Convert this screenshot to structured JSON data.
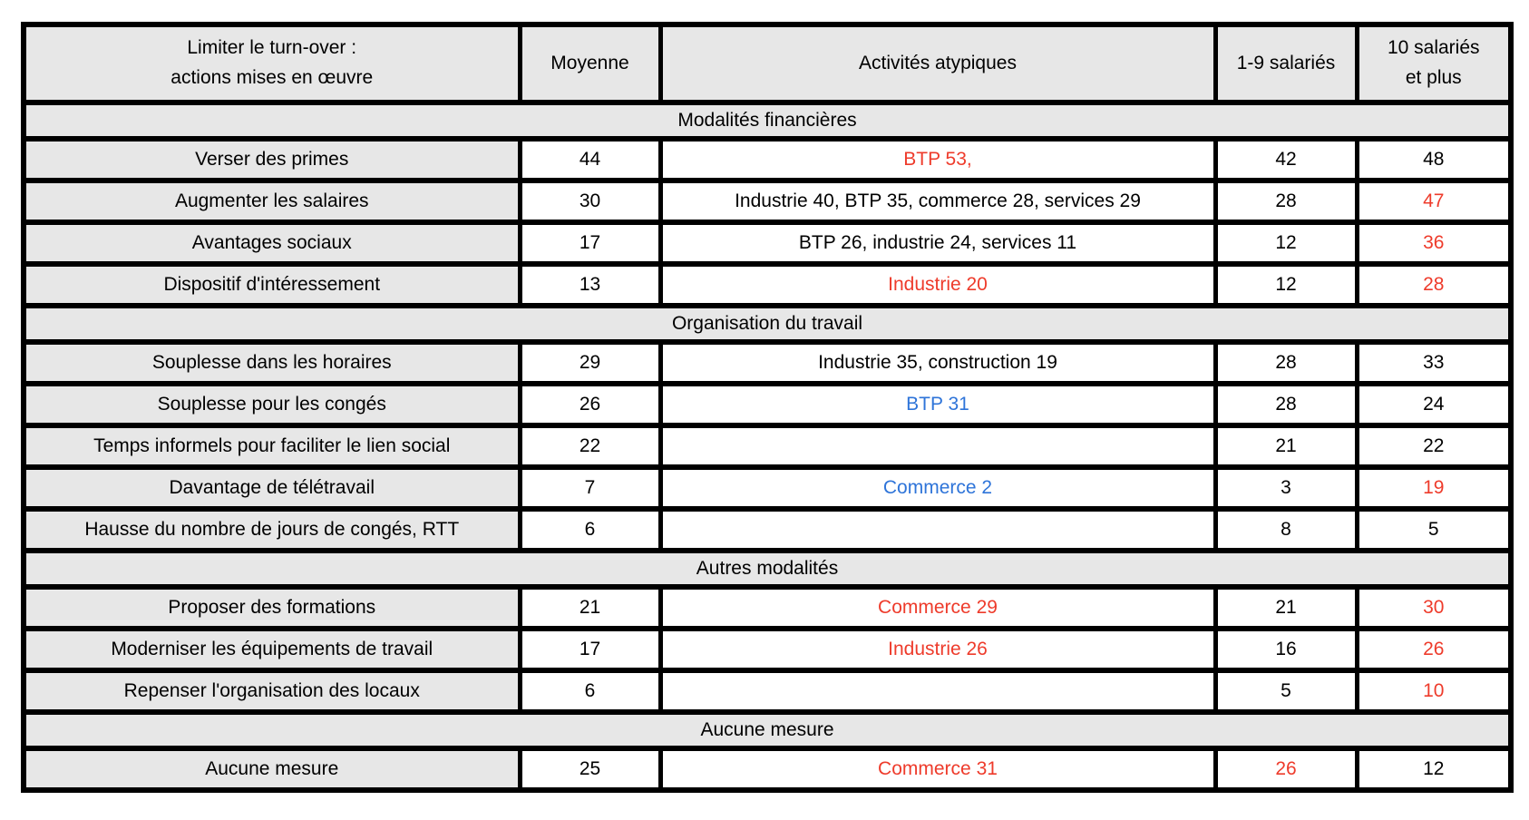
{
  "colors": {
    "red": "#ee3b2b",
    "blue": "#2e74d9",
    "text": "#000000",
    "band_bg": "#e7e7e7",
    "border": "#000000"
  },
  "chart_data": {
    "type": "table",
    "title": "Limiter le turn-over : actions mises en œuvre",
    "legend_note": "red and blue values highlight atypical results",
    "header": [
      {
        "text": "Limiter le turn-over :\nactions mises en œuvre"
      },
      {
        "text": "Moyenne"
      },
      {
        "text": "Activités atypiques"
      },
      {
        "text": "1-9 salariés"
      },
      {
        "text": "10 salariés\net plus"
      }
    ],
    "sections": [
      {
        "title": "Modalités financières",
        "rows": [
          {
            "cells": [
              {
                "text": "Verser des primes"
              },
              {
                "text": "44"
              },
              {
                "text": "BTP 53,",
                "color": "red"
              },
              {
                "text": "42"
              },
              {
                "text": "48"
              }
            ]
          },
          {
            "cells": [
              {
                "text": "Augmenter les salaires"
              },
              {
                "text": "30"
              },
              {
                "text": "Industrie 40, BTP 35, commerce 28, services 29"
              },
              {
                "text": "28"
              },
              {
                "text": "47",
                "color": "red"
              }
            ]
          },
          {
            "cells": [
              {
                "text": "Avantages sociaux"
              },
              {
                "text": "17"
              },
              {
                "text": "BTP 26, industrie 24, services 11"
              },
              {
                "text": "12"
              },
              {
                "text": "36",
                "color": "red"
              }
            ]
          },
          {
            "cells": [
              {
                "text": "Dispositif d'intéressement"
              },
              {
                "text": "13"
              },
              {
                "text": "Industrie 20",
                "color": "red"
              },
              {
                "text": "12"
              },
              {
                "text": "28",
                "color": "red"
              }
            ]
          }
        ]
      },
      {
        "title": "Organisation du travail",
        "rows": [
          {
            "cells": [
              {
                "text": "Souplesse dans les horaires"
              },
              {
                "text": "29"
              },
              {
                "text": "Industrie 35, construction 19"
              },
              {
                "text": "28"
              },
              {
                "text": "33"
              }
            ]
          },
          {
            "cells": [
              {
                "text": "Souplesse pour les congés"
              },
              {
                "text": "26"
              },
              {
                "text": "BTP 31",
                "color": "blue"
              },
              {
                "text": "28"
              },
              {
                "text": "24"
              }
            ]
          },
          {
            "cells": [
              {
                "text": "Temps informels pour faciliter le lien social"
              },
              {
                "text": "22"
              },
              {
                "text": ""
              },
              {
                "text": "21"
              },
              {
                "text": "22"
              }
            ]
          },
          {
            "cells": [
              {
                "text": "Davantage de télétravail"
              },
              {
                "text": "7"
              },
              {
                "text": "Commerce 2",
                "color": "blue"
              },
              {
                "text": "3"
              },
              {
                "text": "19",
                "color": "red"
              }
            ]
          },
          {
            "cells": [
              {
                "text": "Hausse du nombre de jours de congés, RTT"
              },
              {
                "text": "6"
              },
              {
                "text": ""
              },
              {
                "text": "8"
              },
              {
                "text": "5"
              }
            ]
          }
        ]
      },
      {
        "title": "Autres modalités",
        "rows": [
          {
            "cells": [
              {
                "text": "Proposer des formations"
              },
              {
                "text": "21"
              },
              {
                "text": "Commerce 29",
                "color": "red"
              },
              {
                "text": "21"
              },
              {
                "text": "30",
                "color": "red"
              }
            ]
          },
          {
            "cells": [
              {
                "text": "Moderniser les équipements de travail"
              },
              {
                "text": "17"
              },
              {
                "text": "Industrie 26",
                "color": "red"
              },
              {
                "text": "16"
              },
              {
                "text": "26",
                "color": "red"
              }
            ]
          },
          {
            "cells": [
              {
                "text": "Repenser l'organisation des locaux"
              },
              {
                "text": "6"
              },
              {
                "text": ""
              },
              {
                "text": "5"
              },
              {
                "text": "10",
                "color": "red"
              }
            ]
          }
        ]
      },
      {
        "title": "Aucune mesure",
        "rows": [
          {
            "cells": [
              {
                "text": "Aucune mesure"
              },
              {
                "text": "25"
              },
              {
                "text": "Commerce 31",
                "color": "red"
              },
              {
                "text": "26",
                "color": "red"
              },
              {
                "text": "12"
              }
            ]
          }
        ]
      }
    ]
  }
}
